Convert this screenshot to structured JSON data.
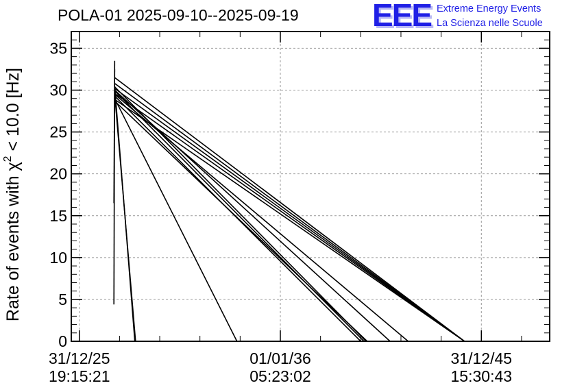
{
  "header": {
    "title": "POLA-01 2025-09-10--2025-09-19"
  },
  "logo": {
    "mark": "EEE",
    "line1": "Extreme Energy Events",
    "line2": "La Scienza nelle Scuole",
    "color": "#1f1fe6"
  },
  "chart_data": {
    "type": "line",
    "title": "POLA-01 2025-09-10--2025-09-19",
    "ylabel_prefix": "Rate of events with ",
    "ylabel_chi": "χ",
    "ylabel_sup": "2",
    "ylabel_suffix": " < 10.0 [Hz]",
    "xlabel": "",
    "ylim": [
      0,
      37
    ],
    "xlim": [
      -0.02,
      1.17
    ],
    "grid": true,
    "yticks": [
      0,
      5,
      10,
      15,
      20,
      25,
      30,
      35
    ],
    "xticks": [
      {
        "x": 0.0,
        "date": "31/12/25",
        "time": "19:15:21"
      },
      {
        "x": 0.5,
        "date": "01/01/36",
        "time": "05:23:02"
      },
      {
        "x": 1.0,
        "date": "31/12/45",
        "time": "15:30:43"
      }
    ],
    "line_color": "#000000",
    "series": [
      {
        "name": "s1",
        "x": [
          0.086,
          0.088
        ],
        "y": [
          4.4,
          33.5
        ]
      },
      {
        "name": "s2",
        "x": [
          0.086,
          0.088
        ],
        "y": [
          16.5,
          32.5
        ]
      },
      {
        "name": "s3",
        "x": [
          0.088,
          0.138
        ],
        "y": [
          30.5,
          0
        ]
      },
      {
        "name": "s4",
        "x": [
          0.088,
          0.14
        ],
        "y": [
          29.5,
          0
        ]
      },
      {
        "name": "s5",
        "x": [
          0.088,
          0.392
        ],
        "y": [
          29.0,
          0
        ]
      },
      {
        "name": "s6",
        "x": [
          0.088,
          0.958
        ],
        "y": [
          31.5,
          0
        ]
      },
      {
        "name": "s7",
        "x": [
          0.088,
          0.958
        ],
        "y": [
          30.8,
          0
        ]
      },
      {
        "name": "s8",
        "x": [
          0.088,
          0.958
        ],
        "y": [
          30.2,
          0
        ]
      },
      {
        "name": "s9",
        "x": [
          0.088,
          0.958
        ],
        "y": [
          29.6,
          0
        ]
      },
      {
        "name": "s10",
        "x": [
          0.088,
          0.958
        ],
        "y": [
          28.9,
          0
        ]
      },
      {
        "name": "s11",
        "x": [
          0.088,
          0.713
        ],
        "y": [
          30.4,
          0
        ]
      },
      {
        "name": "s12",
        "x": [
          0.088,
          0.708
        ],
        "y": [
          29.9,
          0
        ]
      },
      {
        "name": "s13",
        "x": [
          0.088,
          0.7
        ],
        "y": [
          29.3,
          0
        ]
      },
      {
        "name": "s14",
        "x": [
          0.088,
          0.716
        ],
        "y": [
          28.7,
          0
        ]
      },
      {
        "name": "s15",
        "x": [
          0.088,
          0.773
        ],
        "y": [
          30.0,
          0
        ]
      },
      {
        "name": "s16",
        "x": [
          0.088,
          0.818
        ],
        "y": [
          29.5,
          0
        ]
      }
    ]
  }
}
